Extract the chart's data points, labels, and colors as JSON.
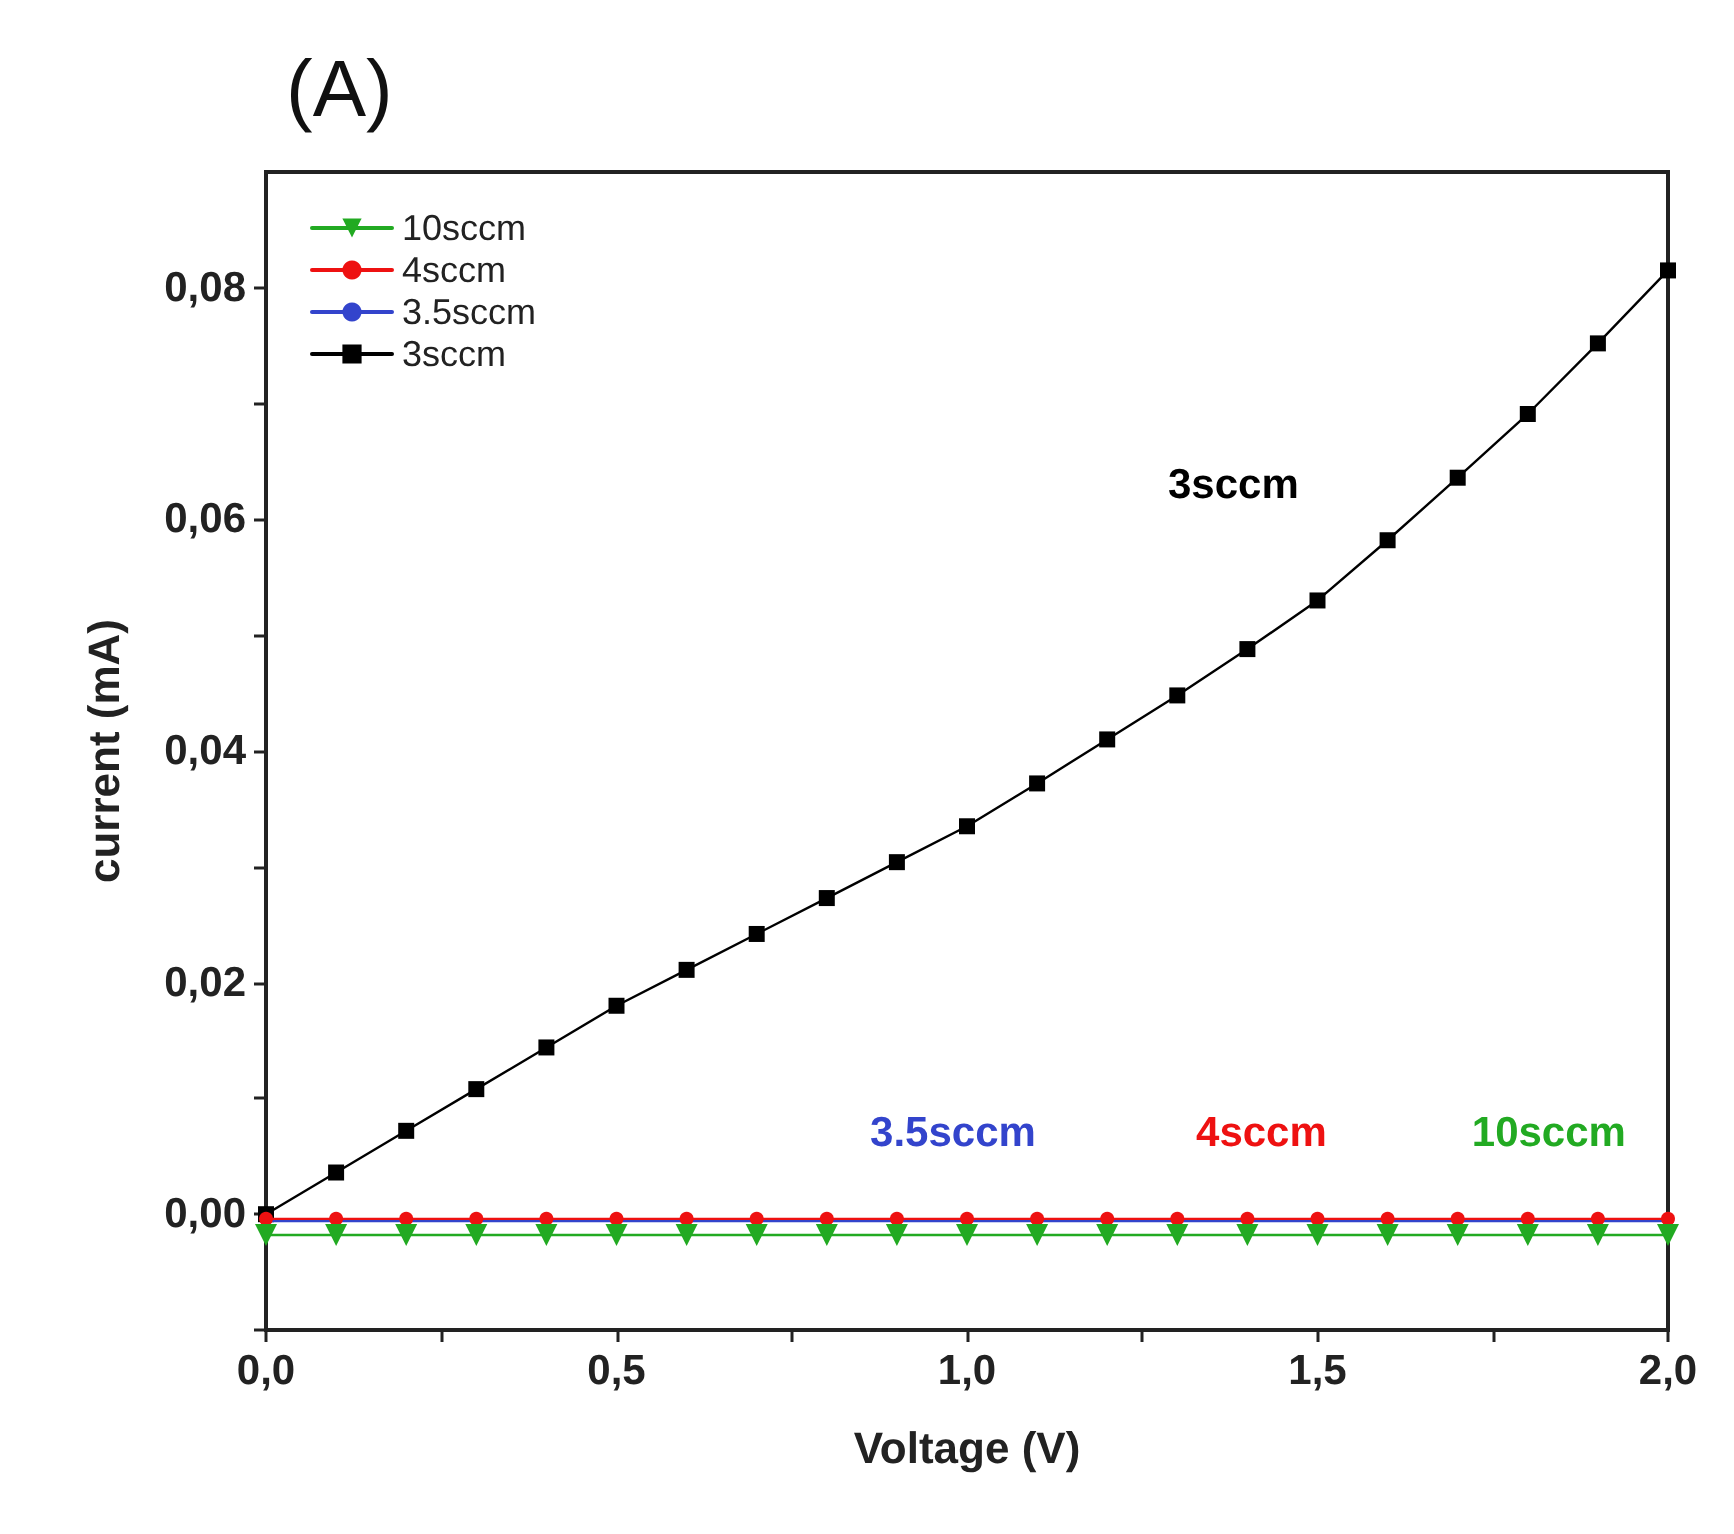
{
  "chart_data": {
    "type": "line",
    "title": "(A)",
    "xlabel": "Voltage (V)",
    "ylabel": "current (mA)",
    "xlim": [
      0,
      2
    ],
    "ylim": [
      -0.01,
      0.09
    ],
    "xticks": [
      {
        "value": 0,
        "label": "0,0"
      },
      {
        "value": 0.25,
        "label": null
      },
      {
        "value": 0.5,
        "label": "0,5"
      },
      {
        "value": 0.75,
        "label": null
      },
      {
        "value": 1,
        "label": "1,0"
      },
      {
        "value": 1.25,
        "label": null
      },
      {
        "value": 1.5,
        "label": "1,5"
      },
      {
        "value": 1.75,
        "label": null
      },
      {
        "value": 2,
        "label": "2,0"
      }
    ],
    "yticks": [
      {
        "value": -0.01,
        "label": null
      },
      {
        "value": 0,
        "label": "0,00"
      },
      {
        "value": 0.01,
        "label": null
      },
      {
        "value": 0.02,
        "label": "0,02"
      },
      {
        "value": 0.03,
        "label": null
      },
      {
        "value": 0.04,
        "label": "0,04"
      },
      {
        "value": 0.05,
        "label": null
      },
      {
        "value": 0.06,
        "label": "0,06"
      },
      {
        "value": 0.07,
        "label": null
      },
      {
        "value": 0.08,
        "label": "0,08"
      }
    ],
    "x": [
      0,
      0.1,
      0.2,
      0.3,
      0.4,
      0.5,
      0.6,
      0.7,
      0.8,
      0.9,
      1.0,
      1.1,
      1.2,
      1.3,
      1.4,
      1.5,
      1.6,
      1.7,
      1.8,
      1.9,
      2.0
    ],
    "series": [
      {
        "name": "10sccm",
        "color": "#22aa22",
        "marker": "triangle",
        "values": [
          -0.0018,
          -0.0018,
          -0.0018,
          -0.0018,
          -0.0018,
          -0.0018,
          -0.0018,
          -0.0018,
          -0.0018,
          -0.0018,
          -0.0018,
          -0.0018,
          -0.0018,
          -0.0018,
          -0.0018,
          -0.0018,
          -0.0018,
          -0.0018,
          -0.0018,
          -0.0018,
          -0.0018
        ]
      },
      {
        "name": "4sccm",
        "color": "#ee1111",
        "marker": "circle",
        "values": [
          -0.0004,
          -0.0004,
          -0.0004,
          -0.0004,
          -0.0004,
          -0.0004,
          -0.0004,
          -0.0004,
          -0.0004,
          -0.0004,
          -0.0004,
          -0.0004,
          -0.0004,
          -0.0004,
          -0.0004,
          -0.0004,
          -0.0004,
          -0.0004,
          -0.0004,
          -0.0004,
          -0.0004
        ]
      },
      {
        "name": "3.5sccm",
        "color": "#3344cc",
        "marker": "circle",
        "values": [
          -0.0006,
          -0.0006,
          -0.0006,
          -0.0006,
          -0.0006,
          -0.0006,
          -0.0006,
          -0.0006,
          -0.0006,
          -0.0006,
          -0.0006,
          -0.0006,
          -0.0006,
          -0.0006,
          -0.0006,
          -0.0006,
          -0.0006,
          -0.0006,
          -0.0006,
          -0.0006,
          -0.0006
        ]
      },
      {
        "name": "3sccm",
        "color": "#000000",
        "marker": "square",
        "values": [
          0,
          0.0036,
          0.0072,
          0.0108,
          0.0144,
          0.018,
          0.0211,
          0.0242,
          0.0273,
          0.0304,
          0.0335,
          0.0372,
          0.041,
          0.0448,
          0.0488,
          0.053,
          0.0582,
          0.0636,
          0.0691,
          0.0752,
          0.0815
        ]
      }
    ],
    "annotations": [
      "10sccm",
      "4sccm",
      "3.5sccm",
      "3sccm"
    ],
    "legend": "top left",
    "grid": false,
    "line_style": "solid"
  }
}
